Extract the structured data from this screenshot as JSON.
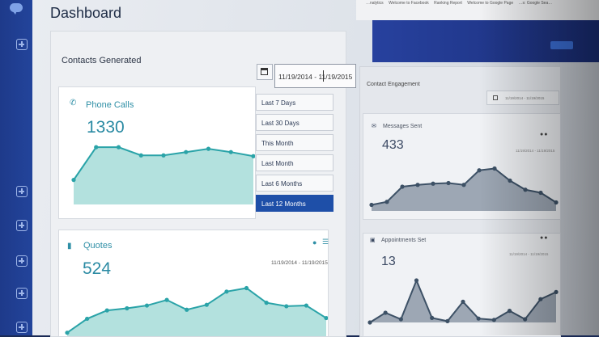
{
  "header": {
    "title": "Dashboard"
  },
  "browser": {
    "bookmarks": [
      "…nalytics",
      "Welcome to Facebook",
      "Ranking Report",
      "Welcome to Google Page",
      "…s: Google Sea…"
    ]
  },
  "contacts": {
    "title": "Contacts Generated",
    "date_range": "11/19/2014 - 11/19/2015",
    "ranges": [
      "Last 7 Days",
      "Last 30 Days",
      "This Month",
      "Last Month",
      "Last 6 Months",
      "Last 12 Months"
    ],
    "selected_range": "Last 12 Months",
    "phone": {
      "label": "Phone Calls",
      "value": "1330",
      "icon": "phone-icon"
    },
    "quotes": {
      "label": "Quotes",
      "value": "524",
      "date_range": "11/19/2014 - 11/19/2015",
      "icon": "document-icon"
    }
  },
  "engagement": {
    "title": "Contact Engagement",
    "date_range": "11/19/2014 - 11/19/2015",
    "messages": {
      "label": "Messages Sent",
      "value": "433",
      "icon": "envelope-icon"
    },
    "appointments": {
      "label": "Appointments Set",
      "value": "13",
      "icon": "calendar-icon"
    }
  },
  "colors": {
    "accent": "#2a8aa3",
    "area_teal": "#a6dcd8",
    "area_grey": "#8e9aa8",
    "active": "#1e4fa8",
    "sidebar": "#1e3a8a"
  },
  "chart_data": [
    {
      "type": "area",
      "series": [
        {
          "name": "Phone Calls",
          "values": [
            3,
            7,
            7,
            6,
            6,
            6.4,
            6.8,
            6.4,
            5.9
          ]
        }
      ]
    },
    {
      "type": "area",
      "series": [
        {
          "name": "Quotes",
          "values": [
            0.5,
            2.5,
            3.7,
            4,
            4.4,
            5.2,
            3.8,
            4.5,
            6.4,
            6.9,
            4.8,
            4.3,
            4.4,
            2.6
          ]
        }
      ]
    },
    {
      "type": "area",
      "series": [
        {
          "name": "Messages Sent",
          "values": [
            1,
            1.5,
            4,
            4.3,
            4.5,
            4.6,
            4.3,
            6.7,
            7,
            5,
            3.5,
            3,
            1.4
          ]
        }
      ]
    },
    {
      "type": "area",
      "series": [
        {
          "name": "Appointments Set",
          "values": [
            0,
            1.5,
            0.5,
            6.5,
            0.7,
            0.2,
            3.2,
            0.6,
            0.4,
            1.8,
            0.5,
            3.6,
            4.7
          ]
        }
      ]
    }
  ]
}
